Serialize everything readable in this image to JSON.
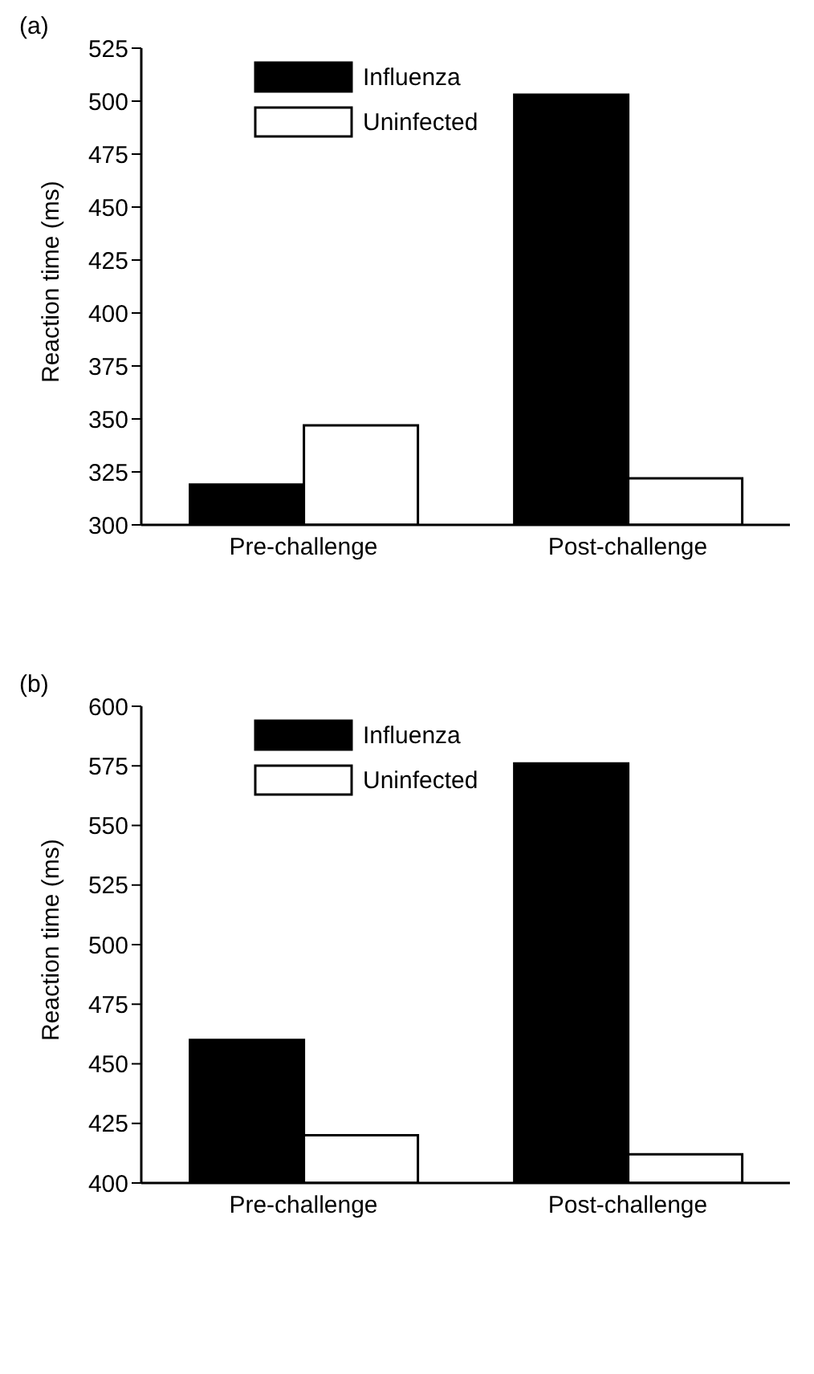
{
  "chart_data": [
    {
      "type": "bar",
      "title": "(a)",
      "ylabel": "Reaction time (ms)",
      "categories": [
        "Pre-challenge",
        "Post-challenge"
      ],
      "series": [
        {
          "name": "Influenza",
          "color": "#000000",
          "values": [
            319,
            503
          ]
        },
        {
          "name": "Uninfected",
          "color": "#ffffff",
          "values": [
            347,
            322
          ]
        }
      ],
      "ylim": [
        300,
        525
      ],
      "yticks": [
        300,
        325,
        350,
        375,
        400,
        425,
        450,
        475,
        500,
        525
      ],
      "grid": false,
      "legend": "top left"
    },
    {
      "type": "bar",
      "title": "(b)",
      "ylabel": "Reaction time (ms)",
      "categories": [
        "Pre-challenge",
        "Post-challenge"
      ],
      "series": [
        {
          "name": "Influenza",
          "color": "#000000",
          "values": [
            460,
            576
          ]
        },
        {
          "name": "Uninfected",
          "color": "#ffffff",
          "values": [
            420,
            412
          ]
        }
      ],
      "ylim": [
        400,
        600
      ],
      "yticks": [
        400,
        425,
        450,
        475,
        500,
        525,
        550,
        575,
        600
      ],
      "grid": false,
      "legend": "top left"
    }
  ]
}
